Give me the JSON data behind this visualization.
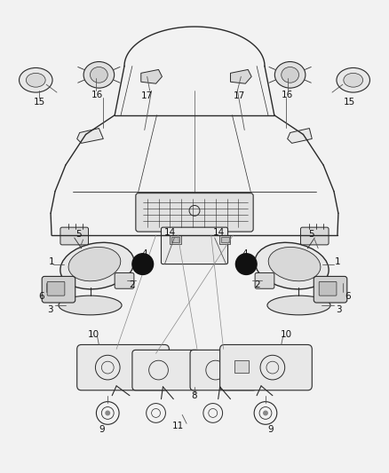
{
  "bg_color": "#f2f2f2",
  "line_color": "#2a2a2a",
  "label_color": "#111111",
  "fig_width": 4.38,
  "fig_height": 5.33,
  "dpi": 100
}
